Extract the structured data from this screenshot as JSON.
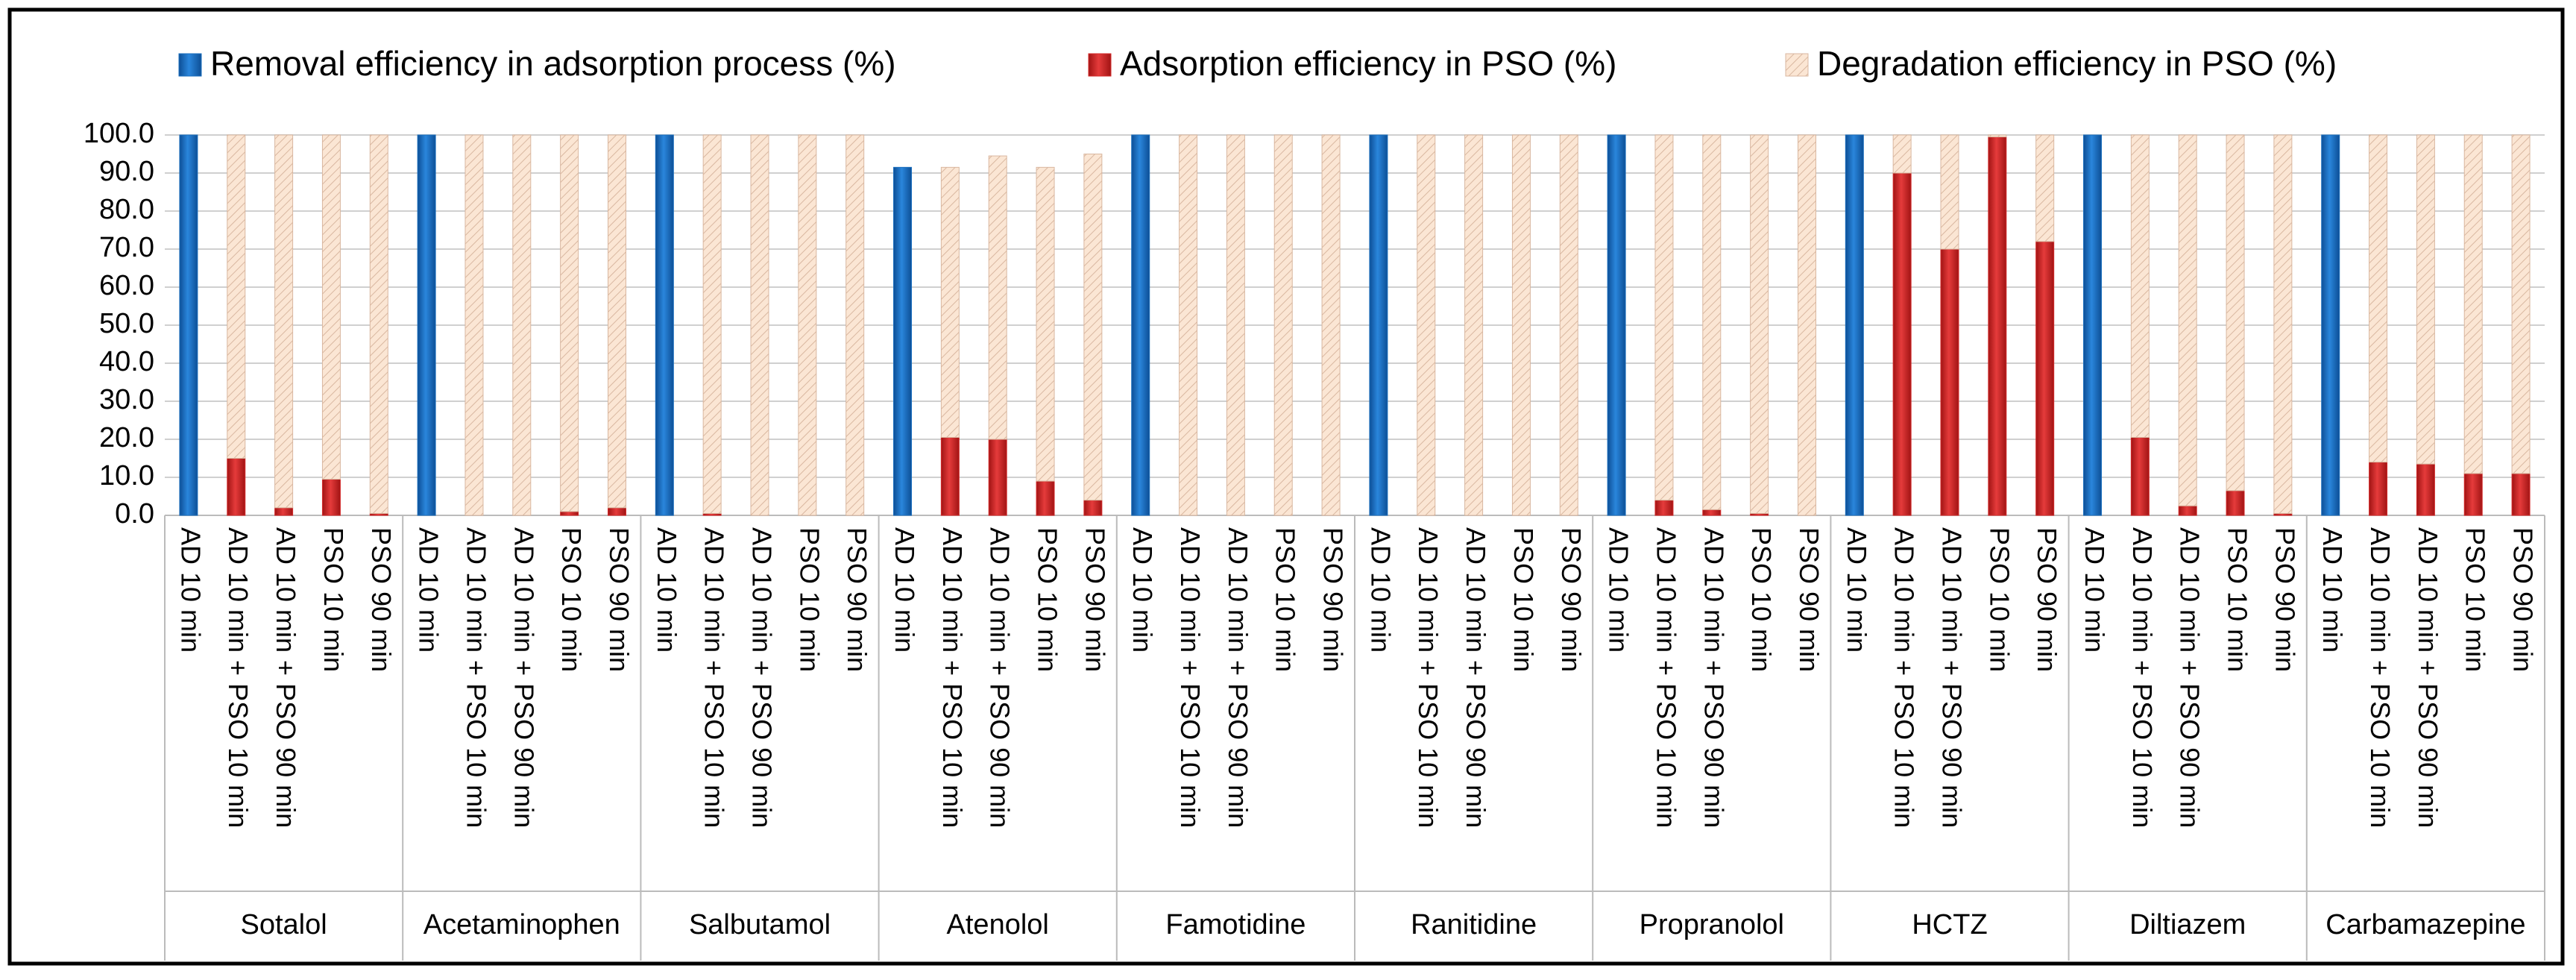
{
  "chart_data": {
    "type": "stacked-bar",
    "groups": [
      "Sotalol",
      "Acetaminophen",
      "Salbutamol",
      "Atenolol",
      "Famotidine",
      "Ranitidine",
      "Propranolol",
      "HCTZ",
      "Diltiazem",
      "Carbamazepine"
    ],
    "categories": [
      "AD 10 min",
      "AD 10 min + PSO 10 min",
      "AD 10 min + PSO 90 min",
      "PSO 10 min",
      "PSO 90 min",
      "AD 10 min",
      "AD 10 min + PSO 10 min",
      "AD 10 min + PSO 90 min",
      "PSO 10 min",
      "PSO 90 min",
      "AD 10 min",
      "AD 10 min + PSO 10 min",
      "AD 10 min + PSO 90 min",
      "PSO 10 min",
      "PSO 90 min",
      "AD 10 min",
      "AD 10 min + PSO 10 min",
      "AD 10 min + PSO 90 min",
      "PSO 10 min",
      "PSO 90 min",
      "AD 10 min",
      "AD 10 min + PSO 10 min",
      "AD 10 min + PSO 90 min",
      "PSO 10 min",
      "PSO 90 min",
      "AD 10 min",
      "AD 10 min + PSO 10 min",
      "AD 10 min + PSO 90 min",
      "PSO 10 min",
      "PSO 90 min",
      "AD 10 min",
      "AD 10 min + PSO 10 min",
      "AD 10 min + PSO 90 min",
      "PSO 10 min",
      "PSO 90 min",
      "AD 10 min",
      "AD 10 min + PSO 10 min",
      "AD 10 min + PSO 90 min",
      "PSO 10 min",
      "PSO 90 min",
      "AD 10 min",
      "AD 10 min + PSO 10 min",
      "AD 10 min + PSO 90 min",
      "PSO 10 min",
      "PSO 90 min",
      "AD 10 min",
      "AD 10 min + PSO 10 min",
      "AD 10 min + PSO 90 min",
      "PSO 10 min",
      "PSO 90 min"
    ],
    "series": [
      {
        "name": "Removal efficiency in adsorption process (%)",
        "color": "#1a6ebd",
        "values": [
          100,
          null,
          null,
          null,
          null,
          100,
          null,
          null,
          null,
          null,
          100,
          null,
          null,
          null,
          null,
          91.5,
          null,
          null,
          null,
          null,
          100,
          null,
          null,
          null,
          null,
          100,
          null,
          null,
          null,
          null,
          100,
          null,
          null,
          null,
          null,
          100,
          null,
          null,
          null,
          null,
          100,
          null,
          null,
          null,
          null,
          100,
          null,
          null,
          null,
          null
        ]
      },
      {
        "name": "Adsorption efficiency in PSO (%)",
        "color": "#d42a2a",
        "values": [
          null,
          15,
          2,
          9.5,
          0.5,
          null,
          0,
          0,
          1,
          2,
          null,
          0.5,
          0,
          0,
          0,
          null,
          20.5,
          20,
          9,
          4,
          null,
          0,
          0,
          0,
          0,
          null,
          0,
          0,
          0,
          0,
          null,
          4,
          1.5,
          0.5,
          0,
          null,
          90,
          70,
          99.5,
          72,
          null,
          20.5,
          2.5,
          6.5,
          0.5,
          null,
          14,
          13.5,
          11,
          11
        ]
      },
      {
        "name": "Degradation efficiency in PSO (%)",
        "color": "#fbe6d4",
        "values": [
          null,
          85,
          98,
          90.5,
          99.5,
          null,
          100,
          100,
          99,
          98,
          null,
          99.5,
          100,
          100,
          100,
          null,
          71,
          74.5,
          82.5,
          91,
          null,
          100,
          100,
          100,
          100,
          null,
          100,
          100,
          100,
          100,
          null,
          96,
          98.5,
          99.5,
          100,
          null,
          10,
          30,
          0.5,
          28,
          null,
          79.5,
          97.5,
          93.5,
          99.5,
          null,
          86,
          86.5,
          89,
          89
        ]
      }
    ],
    "ylim": [
      0,
      100
    ],
    "yticks": [
      {
        "value": 0,
        "label": "0.0"
      },
      {
        "value": 10,
        "label": "10.0"
      },
      {
        "value": 20,
        "label": "20.0"
      },
      {
        "value": 30,
        "label": "30.0"
      },
      {
        "value": 40,
        "label": "40.0"
      },
      {
        "value": 50,
        "label": "50.0"
      },
      {
        "value": 60,
        "label": "60.0"
      },
      {
        "value": 70,
        "label": "70.0"
      },
      {
        "value": 80,
        "label": "80.0"
      },
      {
        "value": 90,
        "label": "90.0"
      },
      {
        "value": 100,
        "label": "100.0"
      }
    ],
    "grid": true,
    "legend": "top"
  }
}
